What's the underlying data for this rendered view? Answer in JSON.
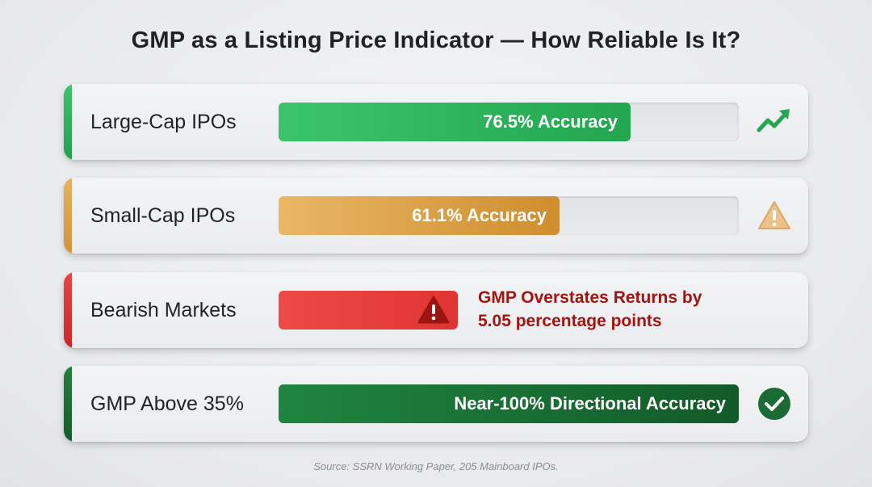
{
  "title": "GMP as a Listing Price Indicator — How Reliable Is It?",
  "source": "Source: SSRN Working Paper, 205 Mainboard IPOs.",
  "chart_data": {
    "type": "bar",
    "title": "GMP as a Listing Price Indicator — How Reliable Is It?",
    "categories": [
      "Large-Cap IPOs",
      "Small-Cap IPOs",
      "Bearish Markets",
      "GMP Above 35%"
    ],
    "values": [
      76.5,
      61.1,
      null,
      100
    ],
    "bar_labels": [
      "76.5% Accuracy",
      "61.1% Accuracy",
      "",
      "Near-100% Directional Accuracy"
    ],
    "annotations": [
      {
        "category": "Bearish Markets",
        "line1": "GMP Overstates Returns by",
        "line2": "5.05 percentage points"
      }
    ],
    "ylim": [
      0,
      100
    ],
    "colors": {
      "large_cap": "#34b860",
      "small_cap": "#dca148",
      "bearish": "#e23a38",
      "gmp_above": "#1d7a3a",
      "warn_text": "#a3140f"
    },
    "icons": [
      "trend-up-icon",
      "warning-triangle-icon",
      "alert-triangle-icon",
      "check-circle-icon"
    ]
  }
}
